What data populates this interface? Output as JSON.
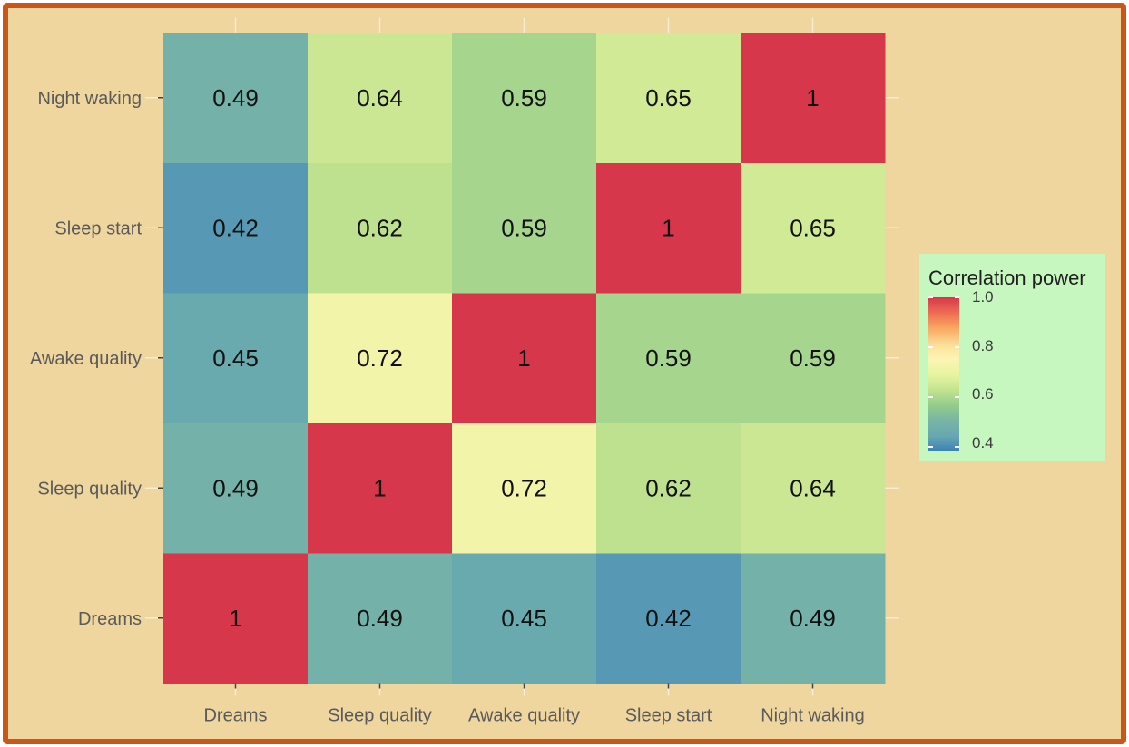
{
  "chart_data": {
    "type": "heatmap",
    "x_categories": [
      "Dreams",
      "Sleep quality",
      "Awake quality",
      "Sleep start",
      "Night waking"
    ],
    "y_categories": [
      "Dreams",
      "Sleep quality",
      "Awake quality",
      "Sleep start",
      "Night waking"
    ],
    "values": [
      [
        1,
        0.49,
        0.45,
        0.42,
        0.49
      ],
      [
        0.49,
        1,
        0.72,
        0.62,
        0.64
      ],
      [
        0.45,
        0.72,
        1,
        0.59,
        0.59
      ],
      [
        0.42,
        0.62,
        0.59,
        1,
        0.65
      ],
      [
        0.49,
        0.64,
        0.59,
        0.65,
        1
      ]
    ],
    "value_labels": [
      [
        "1",
        "0.49",
        "0.45",
        "0.42",
        "0.49"
      ],
      [
        "0.49",
        "1",
        "0.72",
        "0.62",
        "0.64"
      ],
      [
        "0.45",
        "0.72",
        "1",
        "0.59",
        "0.59"
      ],
      [
        "0.42",
        "0.62",
        "0.59",
        "1",
        "0.65"
      ],
      [
        "0.49",
        "0.64",
        "0.59",
        "0.65",
        "1"
      ]
    ],
    "legend": {
      "title": "Correlation power",
      "ticks": [
        "1.0",
        "0.8",
        "0.6",
        "0.4"
      ],
      "tick_values": [
        1.0,
        0.8,
        0.6,
        0.4
      ],
      "range": [
        0.38,
        1.0
      ],
      "placement": "right"
    },
    "colorscale": "Spectral",
    "grid": true
  }
}
